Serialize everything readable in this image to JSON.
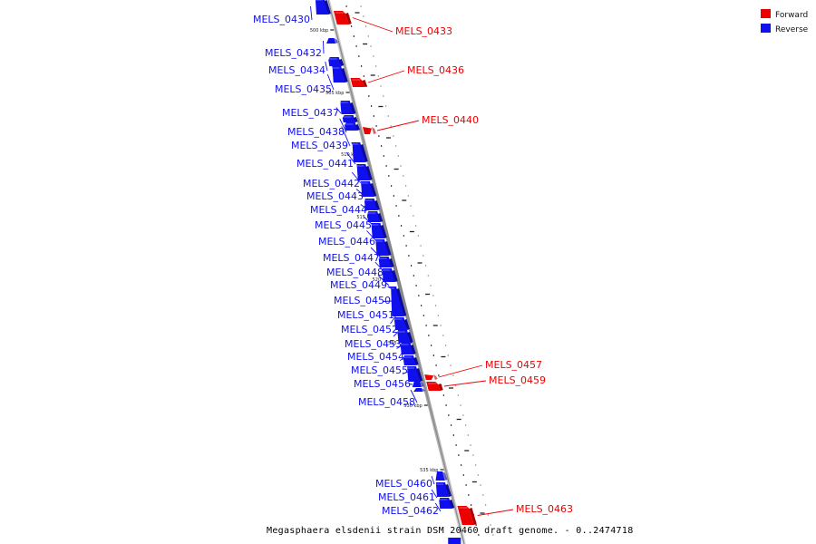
{
  "legend": {
    "forward_label": "Forward",
    "reverse_label": "Reverse",
    "forward_color": "#ee0000",
    "reverse_color": "#1010ee"
  },
  "caption": "Megasphaera elsdenii strain DSM 20460 draft genome. - 0..2474718",
  "axis_line_color": "#8f8f8f",
  "ticks": [
    "500 kbp",
    "505 kbp",
    "510 kbp",
    "515 kbp",
    "520 kbp",
    "525 kbp",
    "530 kbp",
    "535 kbp"
  ],
  "genes": [
    {
      "id": "MELS_0430",
      "strand": "reverse"
    },
    {
      "id": "MELS_0432",
      "strand": "reverse"
    },
    {
      "id": "MELS_0433",
      "strand": "forward"
    },
    {
      "id": "MELS_0434",
      "strand": "reverse"
    },
    {
      "id": "MELS_0435",
      "strand": "reverse"
    },
    {
      "id": "MELS_0436",
      "strand": "forward"
    },
    {
      "id": "MELS_0437",
      "strand": "reverse"
    },
    {
      "id": "MELS_0438",
      "strand": "reverse"
    },
    {
      "id": "MELS_0439",
      "strand": "reverse"
    },
    {
      "id": "MELS_0440",
      "strand": "forward"
    },
    {
      "id": "MELS_0441",
      "strand": "reverse"
    },
    {
      "id": "MELS_0442",
      "strand": "reverse"
    },
    {
      "id": "MELS_0443",
      "strand": "reverse"
    },
    {
      "id": "MELS_0444",
      "strand": "reverse"
    },
    {
      "id": "MELS_0445",
      "strand": "reverse"
    },
    {
      "id": "MELS_0446",
      "strand": "reverse"
    },
    {
      "id": "MELS_0447",
      "strand": "reverse"
    },
    {
      "id": "MELS_0448",
      "strand": "reverse"
    },
    {
      "id": "MELS_0449",
      "strand": "reverse"
    },
    {
      "id": "MELS_0450",
      "strand": "reverse"
    },
    {
      "id": "MELS_0451",
      "strand": "reverse"
    },
    {
      "id": "MELS_0452",
      "strand": "reverse"
    },
    {
      "id": "MELS_0453",
      "strand": "reverse"
    },
    {
      "id": "MELS_0454",
      "strand": "reverse"
    },
    {
      "id": "MELS_0455",
      "strand": "reverse"
    },
    {
      "id": "MELS_0456",
      "strand": "reverse"
    },
    {
      "id": "MELS_0457",
      "strand": "forward"
    },
    {
      "id": "MELS_0458",
      "strand": "reverse"
    },
    {
      "id": "MELS_0459",
      "strand": "forward"
    },
    {
      "id": "MELS_0460",
      "strand": "reverse"
    },
    {
      "id": "MELS_0461",
      "strand": "reverse"
    },
    {
      "id": "MELS_0462",
      "strand": "reverse"
    },
    {
      "id": "MELS_0463",
      "strand": "forward"
    }
  ]
}
